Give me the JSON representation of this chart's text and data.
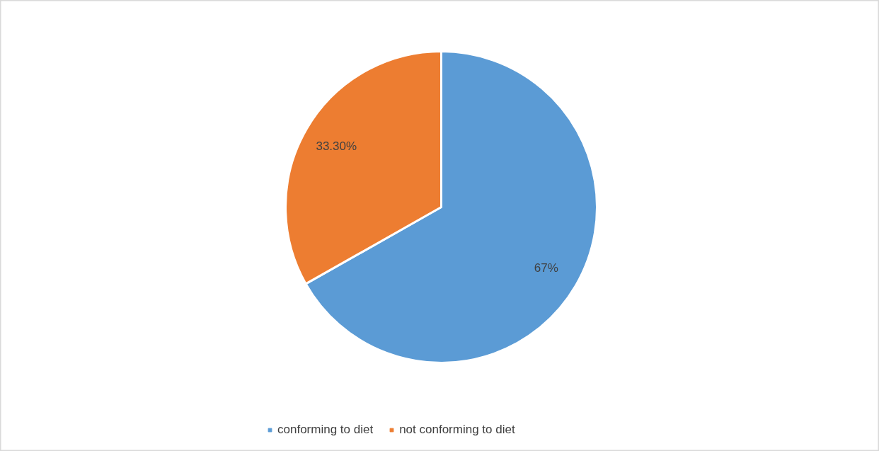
{
  "chart_data": {
    "type": "pie",
    "categories": [
      "conforming to diet",
      "not conforming to diet"
    ],
    "values": [
      67,
      33.3
    ],
    "colors": [
      "#5b9bd5",
      "#ed7d31"
    ],
    "value_labels": [
      "67%",
      "33.30%"
    ],
    "legend": "bottom"
  }
}
